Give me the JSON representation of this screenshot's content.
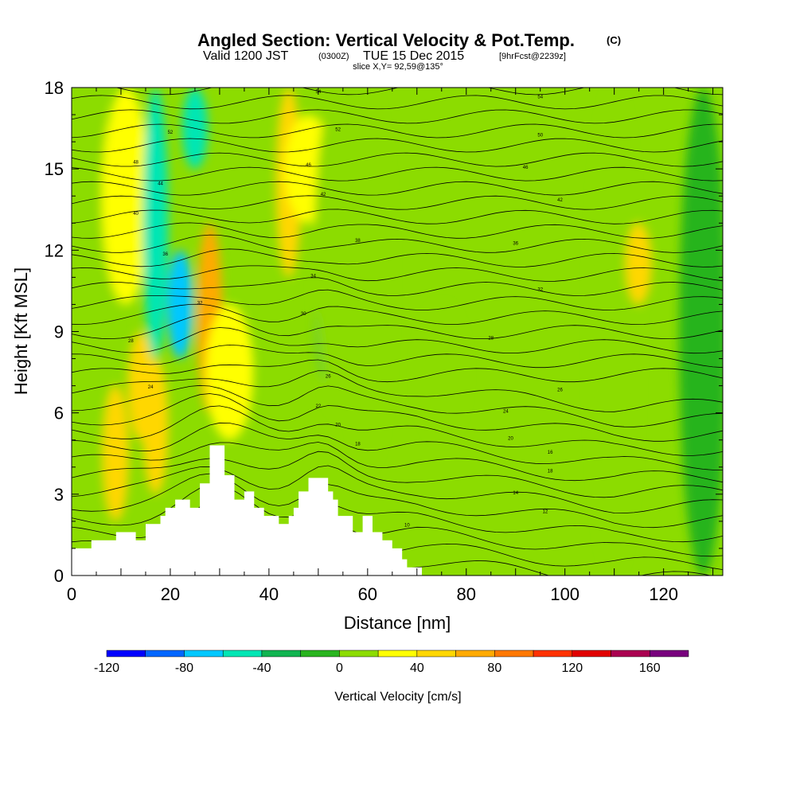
{
  "chart_data": {
    "type": "heatmap",
    "title": "Angled Section: Vertical Velocity & Pot.Temp.",
    "title_suffix": "(C)",
    "subtitle_parts": [
      "Valid 1200 JST",
      "(0300Z)",
      "TUE 15 Dec 2015",
      "[9hrFcst@2239z]"
    ],
    "subtitle2": "slice X,Y= 92,59@135°",
    "xlabel": "Distance [nm]",
    "ylabel": "Height [Kft MSL]",
    "xlim": [
      0,
      132
    ],
    "ylim": [
      0,
      18
    ],
    "xticks": [
      0,
      20,
      40,
      60,
      80,
      100,
      120
    ],
    "yticks": [
      0,
      3,
      6,
      9,
      12,
      15,
      18
    ],
    "grid": false,
    "colorbar": {
      "label": "Vertical Velocity [cm/s]",
      "bins": [
        -120,
        -100,
        -80,
        -60,
        -40,
        -20,
        0,
        20,
        40,
        60,
        80,
        100,
        120,
        140,
        160,
        180
      ],
      "colors": [
        "#0000ff",
        "#0066ff",
        "#00c8ff",
        "#00e6b4",
        "#10b450",
        "#28b41e",
        "#8cdc00",
        "#ffff00",
        "#ffd700",
        "#ffaa00",
        "#ff7800",
        "#ff3200",
        "#e10000",
        "#aa0050",
        "#78007d"
      ],
      "tick_values": [
        -120,
        -80,
        -40,
        0,
        40,
        80,
        120,
        160
      ],
      "tick_labels": [
        "-120",
        "-80",
        "-40",
        "0",
        "40",
        "80",
        "120",
        "160"
      ]
    },
    "theta_contours": [
      {
        "level": "10",
        "x": 68,
        "y": 1.8
      },
      {
        "level": "12",
        "x": 96,
        "y": 2.3
      },
      {
        "level": "14",
        "x": 90,
        "y": 3.0
      },
      {
        "level": "16",
        "x": 97,
        "y": 4.5
      },
      {
        "level": "18",
        "x": 97,
        "y": 3.8
      },
      {
        "level": "18",
        "x": 58,
        "y": 4.8
      },
      {
        "level": "20",
        "x": 89,
        "y": 5.0
      },
      {
        "level": "20",
        "x": 54,
        "y": 5.5
      },
      {
        "level": "22",
        "x": 50,
        "y": 6.2
      },
      {
        "level": "24",
        "x": 88,
        "y": 6.0
      },
      {
        "level": "24",
        "x": 16,
        "y": 6.9
      },
      {
        "level": "26",
        "x": 99,
        "y": 6.8
      },
      {
        "level": "26",
        "x": 52,
        "y": 7.3
      },
      {
        "level": "28",
        "x": 85,
        "y": 8.7
      },
      {
        "level": "28",
        "x": 12,
        "y": 8.6
      },
      {
        "level": "30",
        "x": 47,
        "y": 9.6
      },
      {
        "level": "32",
        "x": 26,
        "y": 10.0
      },
      {
        "level": "32",
        "x": 95,
        "y": 10.5
      },
      {
        "level": "34",
        "x": 49,
        "y": 11.0
      },
      {
        "level": "36",
        "x": 19,
        "y": 11.8
      },
      {
        "level": "36",
        "x": 90,
        "y": 12.2
      },
      {
        "level": "38",
        "x": 58,
        "y": 12.3
      },
      {
        "level": "40",
        "x": 13,
        "y": 13.3
      },
      {
        "level": "42",
        "x": 99,
        "y": 13.8
      },
      {
        "level": "42",
        "x": 51,
        "y": 14.0
      },
      {
        "level": "44",
        "x": 18,
        "y": 14.4
      },
      {
        "level": "46",
        "x": 92,
        "y": 15.0
      },
      {
        "level": "46",
        "x": 48,
        "y": 15.1
      },
      {
        "level": "48",
        "x": 13,
        "y": 15.2
      },
      {
        "level": "50",
        "x": 95,
        "y": 16.2
      },
      {
        "level": "52",
        "x": 20,
        "y": 16.3
      },
      {
        "level": "52",
        "x": 54,
        "y": 16.4
      },
      {
        "level": "54",
        "x": 95,
        "y": 17.6
      },
      {
        "level": "54",
        "x": 50,
        "y": 17.8
      }
    ],
    "terrain": [
      [
        0,
        1
      ],
      [
        4,
        1
      ],
      [
        4,
        1.3
      ],
      [
        9,
        1.3
      ],
      [
        9,
        1.6
      ],
      [
        13,
        1.6
      ],
      [
        13,
        1.3
      ],
      [
        15,
        1.3
      ],
      [
        15,
        1.9
      ],
      [
        18,
        1.9
      ],
      [
        18,
        2.2
      ],
      [
        19,
        2.2
      ],
      [
        19,
        2.5
      ],
      [
        21,
        2.5
      ],
      [
        21,
        2.8
      ],
      [
        24,
        2.8
      ],
      [
        24,
        2.5
      ],
      [
        26,
        2.5
      ],
      [
        26,
        3.4
      ],
      [
        28,
        3.4
      ],
      [
        28,
        4.8
      ],
      [
        31,
        4.8
      ],
      [
        31,
        3.7
      ],
      [
        33,
        3.7
      ],
      [
        33,
        2.8
      ],
      [
        35,
        2.8
      ],
      [
        35,
        3.1
      ],
      [
        37,
        3.1
      ],
      [
        37,
        2.5
      ],
      [
        39,
        2.5
      ],
      [
        39,
        2.2
      ],
      [
        42,
        2.2
      ],
      [
        42,
        1.9
      ],
      [
        44,
        1.9
      ],
      [
        44,
        2.2
      ],
      [
        45,
        2.2
      ],
      [
        45,
        2.5
      ],
      [
        46,
        2.5
      ],
      [
        46,
        3.1
      ],
      [
        48,
        3.1
      ],
      [
        48,
        3.6
      ],
      [
        52,
        3.6
      ],
      [
        52,
        3.1
      ],
      [
        53,
        3.1
      ],
      [
        53,
        2.8
      ],
      [
        54,
        2.8
      ],
      [
        54,
        2.2
      ],
      [
        57,
        2.2
      ],
      [
        57,
        1.6
      ],
      [
        59,
        1.6
      ],
      [
        59,
        2.2
      ],
      [
        61,
        2.2
      ],
      [
        61,
        1.6
      ],
      [
        63,
        1.6
      ],
      [
        63,
        1.3
      ],
      [
        65,
        1.3
      ],
      [
        65,
        1.0
      ],
      [
        67,
        1.0
      ],
      [
        67,
        0.6
      ],
      [
        68,
        0.6
      ],
      [
        68,
        0.3
      ],
      [
        71,
        0.3
      ],
      [
        71,
        0.0
      ]
    ],
    "velocity_field": [
      {
        "x": 4,
        "y0": 0,
        "y1": 18,
        "v": 10
      },
      {
        "x": 9,
        "y0": 2,
        "y1": 7,
        "v": 45
      },
      {
        "x": 11,
        "y0": 10,
        "y1": 18,
        "v": 35
      },
      {
        "x": 14,
        "y0": 5,
        "y1": 9,
        "v": 55
      },
      {
        "x": 17,
        "y0": 3,
        "y1": 8,
        "v": 45
      },
      {
        "x": 17,
        "y0": 8,
        "y1": 18,
        "v": -50
      },
      {
        "x": 22,
        "y0": 8,
        "y1": 12,
        "v": -70
      },
      {
        "x": 25,
        "y0": 15,
        "y1": 18,
        "v": -50
      },
      {
        "x": 28,
        "y0": 6,
        "y1": 13,
        "v": 70
      },
      {
        "x": 32,
        "y0": 5,
        "y1": 10,
        "v": 30
      },
      {
        "x": 44,
        "y0": 11,
        "y1": 18,
        "v": 45
      },
      {
        "x": 48,
        "y0": 13,
        "y1": 17,
        "v": 35
      },
      {
        "x": 52,
        "y0": 7,
        "y1": 12,
        "v": -40
      },
      {
        "x": 54,
        "y0": 6,
        "y1": 18,
        "v": 10
      },
      {
        "x": 60,
        "y0": 4,
        "y1": 18,
        "v": 5
      },
      {
        "x": 75,
        "y0": 5,
        "y1": 10,
        "v": 15
      },
      {
        "x": 110,
        "y0": 0,
        "y1": 18,
        "v": 10
      },
      {
        "x": 115,
        "y0": 10,
        "y1": 13,
        "v": 40
      },
      {
        "x": 128,
        "y0": 0,
        "y1": 18,
        "v": -10
      }
    ]
  }
}
